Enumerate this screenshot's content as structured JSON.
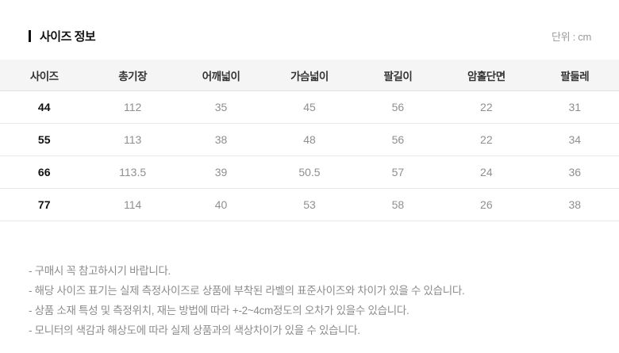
{
  "header": {
    "title": "사이즈 정보",
    "unit_label": "단위 : cm"
  },
  "table": {
    "columns": [
      "사이즈",
      "총기장",
      "어깨넓이",
      "가슴넓이",
      "팔길이",
      "암홀단면",
      "팔둘레"
    ],
    "rows": [
      {
        "size": "44",
        "values": [
          "112",
          "35",
          "45",
          "56",
          "22",
          "31"
        ]
      },
      {
        "size": "55",
        "values": [
          "113",
          "38",
          "48",
          "56",
          "22",
          "34"
        ]
      },
      {
        "size": "66",
        "values": [
          "113.5",
          "39",
          "50.5",
          "57",
          "24",
          "36"
        ]
      },
      {
        "size": "77",
        "values": [
          "114",
          "40",
          "53",
          "58",
          "26",
          "38"
        ]
      }
    ]
  },
  "notes": [
    "- 구매시 꼭 참고하시기 바랍니다.",
    "- 해당 사이즈 표기는 실제 측정사이즈로 상품에 부착된 라벨의 표준사이즈와 차이가 있을 수 있습니다.",
    "- 상품 소재 특성 및 측정위치, 재는 방법에 따라 +-2~4cm정도의 오차가 있을수 있습니다.",
    "- 모니터의 색감과 해상도에 따라 실제 상품과의 색상차이가 있을 수 있습니다."
  ],
  "colors": {
    "title_text": "#111111",
    "header_background": "#f5f5f5",
    "header_text": "#333333",
    "value_text": "#8f8f8f",
    "size_text": "#111111",
    "row_border": "#e8e8e8",
    "note_text": "#8c8c8c",
    "unit_text": "#999999"
  }
}
